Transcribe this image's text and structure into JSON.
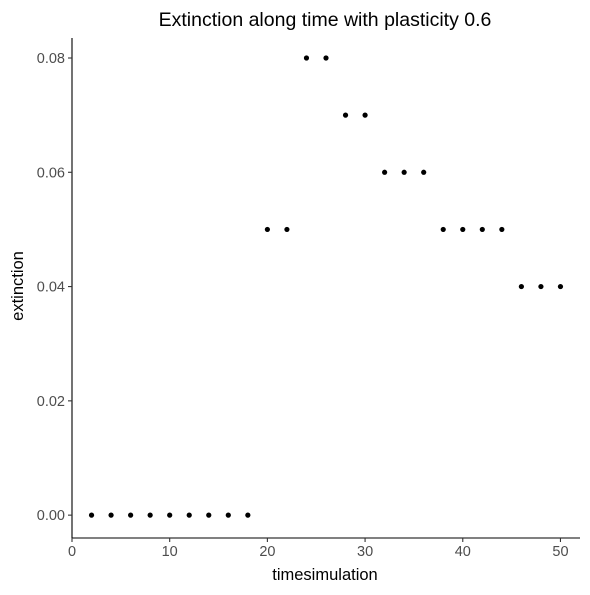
{
  "chart_data": {
    "type": "scatter",
    "title": "Extinction along time with plasticity 0.6",
    "xlabel": "timesimulation",
    "ylabel": "extinction",
    "xlim": [
      0,
      52
    ],
    "ylim": [
      -0.004,
      0.0835
    ],
    "xticks": [
      0,
      10,
      20,
      30,
      40,
      50
    ],
    "yticks": [
      0.0,
      0.02,
      0.04,
      0.06,
      0.08
    ],
    "xtick_labels": [
      "0",
      "10",
      "20",
      "30",
      "40",
      "50"
    ],
    "ytick_labels": [
      "0.00",
      "0.02",
      "0.04",
      "0.06",
      "0.08"
    ],
    "grid": false,
    "legend": "none",
    "point_color": "#000000",
    "points": [
      {
        "x": 2,
        "y": 0.0
      },
      {
        "x": 4,
        "y": 0.0
      },
      {
        "x": 6,
        "y": 0.0
      },
      {
        "x": 8,
        "y": 0.0
      },
      {
        "x": 10,
        "y": 0.0
      },
      {
        "x": 12,
        "y": 0.0
      },
      {
        "x": 14,
        "y": 0.0
      },
      {
        "x": 16,
        "y": 0.0
      },
      {
        "x": 18,
        "y": 0.0
      },
      {
        "x": 20,
        "y": 0.05
      },
      {
        "x": 22,
        "y": 0.05
      },
      {
        "x": 24,
        "y": 0.08
      },
      {
        "x": 26,
        "y": 0.08
      },
      {
        "x": 28,
        "y": 0.07
      },
      {
        "x": 30,
        "y": 0.07
      },
      {
        "x": 32,
        "y": 0.06
      },
      {
        "x": 34,
        "y": 0.06
      },
      {
        "x": 36,
        "y": 0.06
      },
      {
        "x": 38,
        "y": 0.05
      },
      {
        "x": 40,
        "y": 0.05
      },
      {
        "x": 42,
        "y": 0.05
      },
      {
        "x": 44,
        "y": 0.05
      },
      {
        "x": 46,
        "y": 0.04
      },
      {
        "x": 48,
        "y": 0.04
      },
      {
        "x": 50,
        "y": 0.04
      }
    ]
  }
}
